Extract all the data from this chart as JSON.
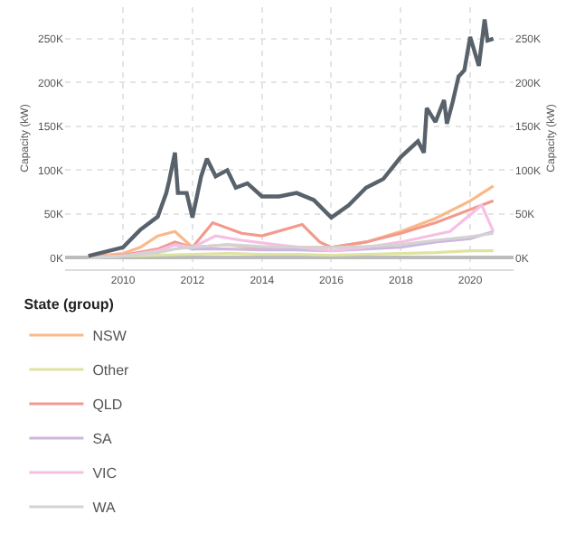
{
  "chart_data": {
    "type": "line",
    "ylabel": "Capacity (kW)",
    "y2label": "Capacity (kW)",
    "legend_title": "State (group)",
    "legend": "bottom",
    "grid": true,
    "line_style": "solid",
    "xlim": [
      "2008-05",
      "2021-04"
    ],
    "xticks": [
      {
        "value": "2010-01",
        "label": "2010"
      },
      {
        "value": "2012-01",
        "label": "2012"
      },
      {
        "value": "2014-01",
        "label": "2014"
      },
      {
        "value": "2016-01",
        "label": "2016"
      },
      {
        "value": "2018-01",
        "label": "2018"
      },
      {
        "value": "2020-01",
        "label": "2020"
      }
    ],
    "ylim": [
      -13000,
      286000
    ],
    "yticks": [
      {
        "value": 0,
        "label": "0K"
      },
      {
        "value": 50000,
        "label": "50K"
      },
      {
        "value": 100000,
        "label": "100K"
      },
      {
        "value": 150000,
        "label": "150K"
      },
      {
        "value": 200000,
        "label": "200K"
      },
      {
        "value": 250000,
        "label": "250K"
      }
    ],
    "y2lim": [
      -13000,
      286000
    ],
    "y2ticks": [
      {
        "value": 0,
        "label": "0K"
      },
      {
        "value": 50000,
        "label": "50K"
      },
      {
        "value": 100000,
        "label": "100K"
      },
      {
        "value": 150000,
        "label": "150K"
      },
      {
        "value": 200000,
        "label": "200K"
      },
      {
        "value": 250000,
        "label": "250K"
      }
    ],
    "series": [
      {
        "name": "NSW",
        "color": "#f9b98a",
        "x": [
          "2009-01",
          "2010-01",
          "2010-07",
          "2011-01",
          "2011-07",
          "2012-01",
          "2013-01",
          "2014-01",
          "2015-01",
          "2016-01",
          "2017-01",
          "2018-01",
          "2019-01",
          "2020-01",
          "2020-09"
        ],
        "values": [
          1000,
          5000,
          12000,
          25000,
          30000,
          12000,
          15000,
          10000,
          12000,
          12000,
          18000,
          30000,
          45000,
          65000,
          82000
        ]
      },
      {
        "name": "Other",
        "color": "#dfe3a0",
        "x": [
          "2009-01",
          "2010-01",
          "2011-01",
          "2012-01",
          "2013-01",
          "2014-01",
          "2015-01",
          "2016-01",
          "2017-01",
          "2018-01",
          "2019-01",
          "2020-01",
          "2020-09"
        ],
        "values": [
          0,
          2000,
          3000,
          4000,
          5000,
          4000,
          4000,
          3000,
          4000,
          5000,
          6000,
          8000,
          8000
        ]
      },
      {
        "name": "QLD",
        "color": "#f29a8e",
        "x": [
          "2009-01",
          "2010-01",
          "2011-01",
          "2011-07",
          "2012-01",
          "2012-08",
          "2013-06",
          "2014-01",
          "2015-03",
          "2015-09",
          "2016-01",
          "2017-01",
          "2018-01",
          "2019-01",
          "2020-01",
          "2020-09"
        ],
        "values": [
          0,
          3000,
          10000,
          18000,
          12000,
          40000,
          28000,
          25000,
          38000,
          18000,
          12000,
          18000,
          28000,
          40000,
          55000,
          65000
        ]
      },
      {
        "name": "SA",
        "color": "#cdb6e0",
        "x": [
          "2009-01",
          "2010-01",
          "2011-01",
          "2011-07",
          "2012-01",
          "2013-01",
          "2014-01",
          "2015-01",
          "2016-01",
          "2017-01",
          "2018-01",
          "2019-01",
          "2020-01",
          "2020-09"
        ],
        "values": [
          0,
          2000,
          8000,
          15000,
          10000,
          10000,
          9000,
          9000,
          8000,
          10000,
          12000,
          18000,
          22000,
          30000
        ]
      },
      {
        "name": "VIC",
        "color": "#f5c0e4",
        "x": [
          "2009-01",
          "2010-01",
          "2011-01",
          "2011-07",
          "2012-01",
          "2012-09",
          "2013-06",
          "2014-06",
          "2016-01",
          "2017-01",
          "2018-01",
          "2019-06",
          "2020-05",
          "2020-09"
        ],
        "values": [
          0,
          2000,
          8000,
          15000,
          12000,
          25000,
          20000,
          15000,
          8000,
          12000,
          18000,
          30000,
          60000,
          30000
        ]
      },
      {
        "name": "WA",
        "color": "#d3d3d3",
        "x": [
          "2009-01",
          "2010-01",
          "2011-01",
          "2011-07",
          "2012-01",
          "2013-01",
          "2014-01",
          "2015-01",
          "2016-01",
          "2017-01",
          "2018-01",
          "2019-01",
          "2020-01",
          "2020-09"
        ],
        "values": [
          0,
          2000,
          6000,
          10000,
          12000,
          15000,
          13000,
          12000,
          12000,
          13000,
          15000,
          20000,
          24000,
          28000
        ]
      },
      {
        "color": "#59626b",
        "x": [
          "2009-01",
          "2010-01",
          "2010-07",
          "2011-01",
          "2011-04",
          "2011-05",
          "2011-07",
          "2011-08",
          "2011-11",
          "2012-01",
          "2012-04",
          "2012-06",
          "2012-09",
          "2013-01",
          "2013-04",
          "2013-08",
          "2014-01",
          "2014-07",
          "2015-01",
          "2015-07",
          "2016-01",
          "2016-07",
          "2017-01",
          "2017-04",
          "2017-07",
          "2018-01",
          "2018-07",
          "2018-09",
          "2018-10",
          "2019-01",
          "2019-04",
          "2019-05",
          "2019-07",
          "2019-09",
          "2019-11",
          "2020-01",
          "2020-04",
          "2020-06",
          "2020-07",
          "2020-09"
        ],
        "values": [
          2000,
          12000,
          32000,
          47000,
          74000,
          88000,
          120000,
          74000,
          74000,
          46000,
          93000,
          113000,
          93000,
          100000,
          80000,
          85000,
          70000,
          70000,
          74000,
          66000,
          46000,
          60000,
          80000,
          85000,
          90000,
          115000,
          133000,
          120000,
          171000,
          155000,
          180000,
          153000,
          178000,
          207000,
          214000,
          252000,
          219000,
          272000,
          248000,
          250000
        ]
      }
    ]
  }
}
